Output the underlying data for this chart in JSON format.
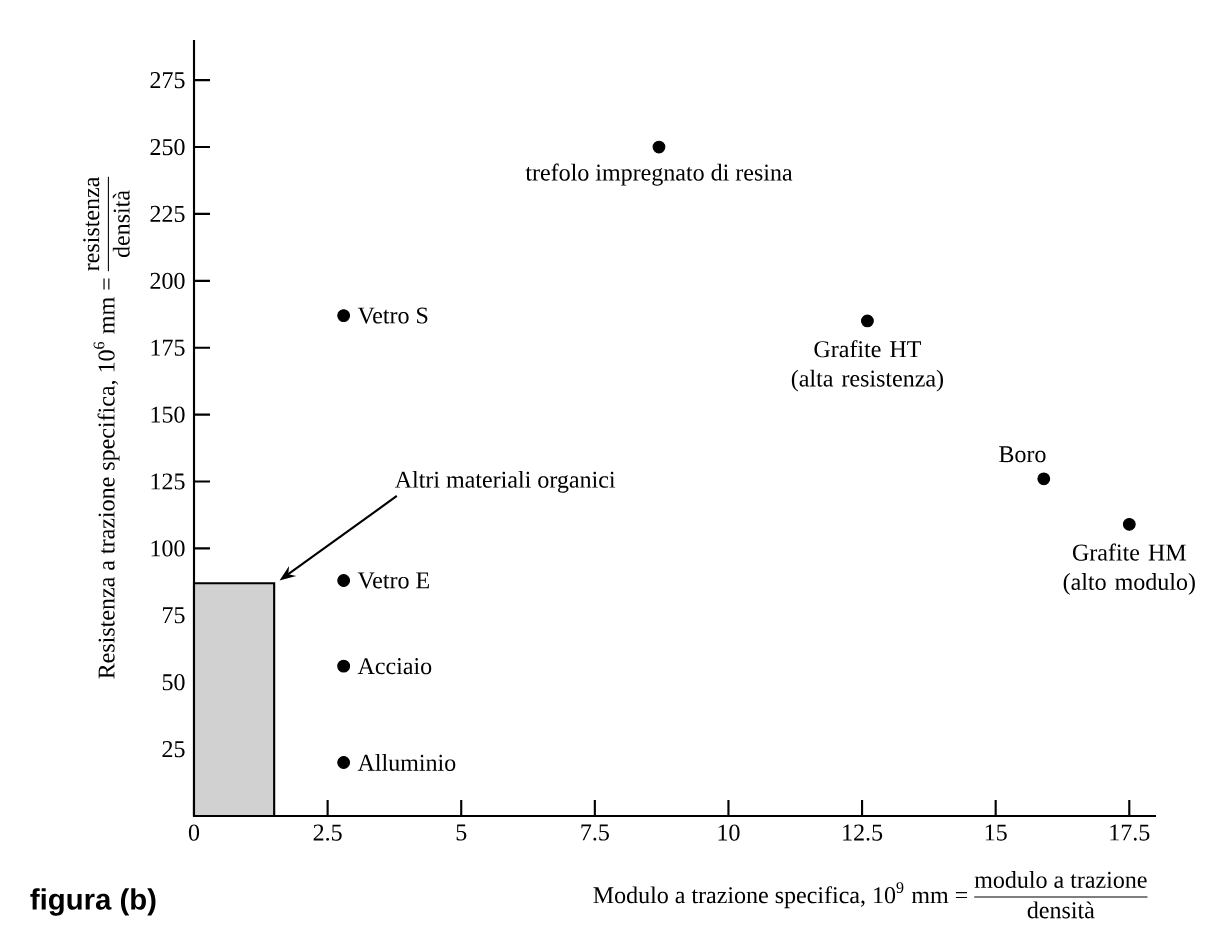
{
  "chart_data": {
    "type": "scatter",
    "xlabel": "Modulo a trazione specifica, 10$^{9}$ mm =",
    "ylabel": "Resistenza a trazione specifica, 10$^{6}$ mm =",
    "series": [
      {
        "type": "area",
        "marker": "none",
        "color": "#000000",
        "x": [
          0,
          1.5
        ],
        "values": [
          87,
          87
        ]
      },
      {
        "marker": "circle",
        "color": "#000000",
        "x": [
          8.7,
          2.8,
          12.6,
          15.9,
          17.5,
          2.8,
          2.8,
          2.8
        ],
        "values": [
          250,
          187,
          185,
          126,
          109,
          88,
          56,
          20
        ]
      }
    ],
    "annotations": [
      {
        "text": "trefolo impregnato di resina",
        "x": 8.7,
        "y": 250
      },
      {
        "text": "Vetro S",
        "x": 2.8,
        "y": 187
      },
      {
        "text": "Grafite HT (alta resistenza)",
        "x": 12.6,
        "y": 185
      },
      {
        "text": "Boro",
        "x": 15.9,
        "y": 126
      },
      {
        "text": "Grafite HM (alto modulo)",
        "x": 17.5,
        "y": 109
      },
      {
        "text": "Vetro E",
        "x": 2.8,
        "y": 88
      },
      {
        "text": "Acciaio",
        "x": 2.8,
        "y": 56
      },
      {
        "text": "Alluminio",
        "x": 2.8,
        "y": 20
      },
      {
        "text": "Altri materiali organici",
        "x": 1.5,
        "y": 87
      },
      "figura (b)",
      "modulo a trazione",
      "densità",
      "resistenza",
      "densità"
    ],
    "xlim": [
      0,
      18
    ],
    "ylim": [
      0,
      290
    ],
    "xticks": [
      0,
      2.5,
      5,
      7.5,
      10,
      12.5,
      15,
      17.5
    ],
    "yticks": [
      25,
      50,
      75,
      100,
      125,
      150,
      175,
      200,
      225,
      250,
      275
    ],
    "grid": false
  }
}
